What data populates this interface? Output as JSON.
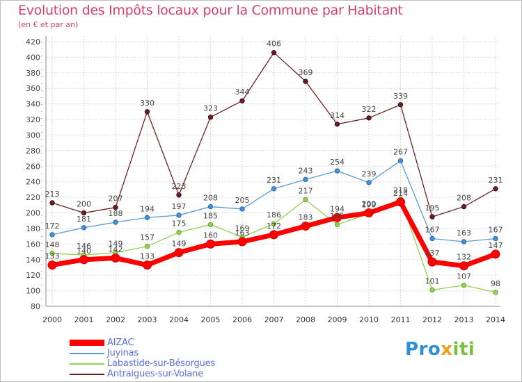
{
  "chart_data": {
    "type": "line",
    "title": "Evolution des Impôts locaux pour la Commune par Habitant",
    "subtitle": "(en € et par an)",
    "xlabel": "",
    "ylabel": "",
    "x": [
      "2000",
      "2001",
      "2002",
      "2003",
      "2004",
      "2005",
      "2006",
      "2007",
      "2008",
      "2009",
      "2010",
      "2011",
      "2012",
      "2013",
      "2014"
    ],
    "ylim": [
      80,
      420
    ],
    "yticks": [
      80,
      100,
      120,
      140,
      160,
      180,
      200,
      220,
      240,
      260,
      280,
      300,
      320,
      340,
      360,
      380,
      400,
      420
    ],
    "grid": true,
    "series": [
      {
        "name": "Antraigues-sur-Volane",
        "color": "#6b1f24",
        "values": [
          213,
          200,
          207,
          330,
          223,
          323,
          344,
          406,
          369,
          314,
          322,
          339,
          195,
          208,
          231
        ],
        "labels": [
          "213",
          "200",
          "207",
          "330",
          "223",
          "323",
          "344",
          "406",
          "369",
          "314",
          "322",
          "339",
          "195",
          "208",
          "231"
        ]
      },
      {
        "name": "Juyinas",
        "color": "#5b9bd5",
        "values": [
          172,
          181,
          188,
          194,
          197,
          208,
          205,
          231,
          243,
          254,
          239,
          267,
          167,
          163,
          167
        ],
        "labels": [
          "172",
          "181",
          "188",
          "194",
          "197",
          "208",
          "205",
          "231",
          "243",
          "254",
          "239",
          "267",
          "167",
          "163",
          "167"
        ]
      },
      {
        "name": "Labastide-sur-Bésorgues",
        "color": "#92d050",
        "values": [
          148,
          146,
          149,
          157,
          175,
          185,
          169,
          186,
          217,
          185,
          199,
          218,
          101,
          107,
          98
        ],
        "labels": [
          "148",
          "146",
          "149",
          "157",
          "175",
          "185",
          "169",
          "186",
          "217",
          "185",
          "199",
          "218",
          "101",
          "107",
          "98"
        ]
      },
      {
        "name": "AIZAC",
        "color": "#ff0000",
        "values": [
          133,
          140,
          142,
          133,
          149,
          160,
          163,
          172,
          183,
          194,
          200,
          214,
          137,
          132,
          147
        ],
        "labels": [
          "133",
          "140",
          "142",
          "133",
          "149",
          "160",
          "163",
          "172",
          "183",
          "194",
          "200",
          "214",
          "137",
          "132",
          "147"
        ]
      }
    ],
    "legend_order": [
      "AIZAC",
      "Juyinas",
      "Labastide-sur-Bésorgues",
      "Antraigues-sur-Volane"
    ]
  },
  "logo": {
    "p1": "Pro",
    "p2": "x",
    "p3": "iti"
  }
}
